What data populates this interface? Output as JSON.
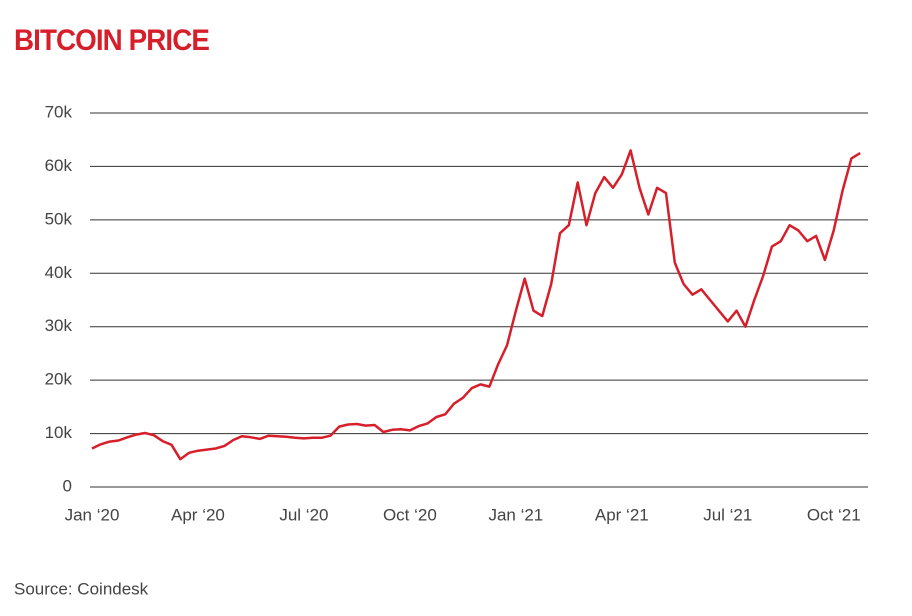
{
  "chart_data": {
    "type": "line",
    "title": "BITCOIN PRICE",
    "source": "Source: Coindesk",
    "x": [
      0,
      0.25,
      0.5,
      0.75,
      1,
      1.25,
      1.5,
      1.75,
      2,
      2.25,
      2.5,
      2.75,
      3,
      3.25,
      3.5,
      3.75,
      4,
      4.25,
      4.5,
      4.75,
      5,
      5.25,
      5.5,
      5.75,
      6,
      6.25,
      6.5,
      6.75,
      7,
      7.25,
      7.5,
      7.75,
      8,
      8.25,
      8.5,
      8.75,
      9,
      9.25,
      9.5,
      9.75,
      10,
      10.25,
      10.5,
      10.75,
      11,
      11.25,
      11.5,
      11.75,
      12,
      12.25,
      12.5,
      12.75,
      13,
      13.25,
      13.5,
      13.75,
      14,
      14.25,
      14.5,
      14.75,
      15,
      15.25,
      15.5,
      15.75,
      16,
      16.25,
      16.5,
      16.75,
      17,
      17.25,
      17.5,
      17.75,
      18,
      18.25,
      18.5,
      18.75,
      19,
      19.25,
      19.5,
      19.75,
      20,
      20.25,
      20.5,
      20.75,
      21,
      21.25,
      21.5,
      21.75
    ],
    "series": [
      {
        "name": "Bitcoin",
        "color": "#d71f2b",
        "values": [
          7200,
          8000,
          8500,
          8700,
          9300,
          9800,
          10100,
          9700,
          8600,
          7900,
          5200,
          6400,
          6800,
          7000,
          7200,
          7700,
          8800,
          9500,
          9300,
          9000,
          9600,
          9500,
          9400,
          9200,
          9100,
          9200,
          9200,
          9600,
          11300,
          11700,
          11800,
          11500,
          11600,
          10300,
          10700,
          10800,
          10600,
          11400,
          11900,
          13100,
          13600,
          15600,
          16700,
          18500,
          19200,
          18800,
          23000,
          26500,
          33000,
          39000,
          33000,
          32000,
          38000,
          47500,
          49000,
          57000,
          49000,
          55000,
          58000,
          56000,
          58500,
          63000,
          56000,
          51000,
          56000,
          55000,
          42000,
          38000,
          36000,
          37000,
          35000,
          33000,
          31000,
          33000,
          30000,
          35000,
          39500,
          45000,
          46000,
          49000,
          48000,
          46000,
          47000,
          42500,
          48000,
          55500,
          61500,
          62500
        ]
      }
    ],
    "xlim": [
      0,
      21.8
    ],
    "xticks": [
      {
        "value": 0,
        "label": "Jan ‘20"
      },
      {
        "value": 3,
        "label": "Apr ‘20"
      },
      {
        "value": 6,
        "label": "Jul ‘20"
      },
      {
        "value": 9,
        "label": "Oct ‘20"
      },
      {
        "value": 12,
        "label": "Jan ‘21"
      },
      {
        "value": 15,
        "label": "Apr ‘21"
      },
      {
        "value": 18,
        "label": "Jul ‘21"
      },
      {
        "value": 21,
        "label": "Oct ‘21"
      }
    ],
    "ylim": [
      0,
      70000
    ],
    "yticks": [
      0,
      {
        "value": 10000,
        "label": "10k"
      },
      {
        "value": 20000,
        "label": "20k"
      },
      {
        "value": 30000,
        "label": "30k"
      },
      {
        "value": 40000,
        "label": "40k"
      },
      {
        "value": 50000,
        "label": "50k"
      },
      {
        "value": 60000,
        "label": "60k"
      },
      {
        "value": 70000,
        "label": "70k"
      }
    ],
    "grid": true
  }
}
